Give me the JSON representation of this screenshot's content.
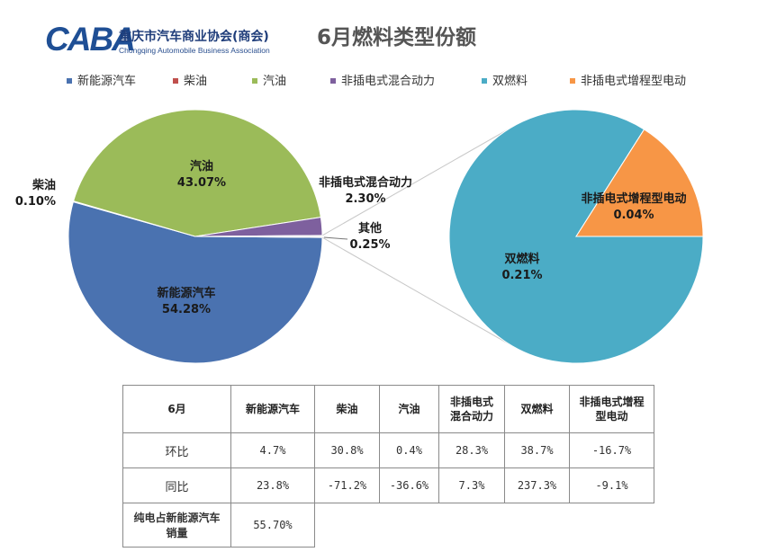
{
  "logo": {
    "mark": "CABA",
    "name_cn": "重庆市汽车商业协会(商会)",
    "name_en": "Chongqing Automobile Business Association"
  },
  "chart_data": {
    "type": "pie",
    "title": "6月燃料类型份额",
    "legend_position": "top",
    "legend": [
      {
        "label": "新能源汽车",
        "color": "#4a72b0"
      },
      {
        "label": "柴油",
        "color": "#c0504d"
      },
      {
        "label": "汽油",
        "color": "#9bbb59"
      },
      {
        "label": "非插电式混合动力",
        "color": "#7e609e"
      },
      {
        "label": "双燃料",
        "color": "#4bacc6"
      },
      {
        "label": "非插电式增程型电动",
        "color": "#f79646"
      }
    ],
    "main_pie": {
      "slices": [
        {
          "label": "新能源汽车",
          "value": 54.28,
          "display": "54.28%",
          "color": "#4a72b0"
        },
        {
          "label": "柴油",
          "value": 0.1,
          "display": "0.10%",
          "color": "#c0504d"
        },
        {
          "label": "汽油",
          "value": 43.07,
          "display": "43.07%",
          "color": "#9bbb59"
        },
        {
          "label": "非插电式混合动力",
          "value": 2.3,
          "display": "2.30%",
          "color": "#7e609e"
        },
        {
          "label": "其他",
          "value": 0.25,
          "display": "0.25%",
          "color": "#f2f2f2"
        }
      ]
    },
    "secondary_pie": {
      "of": "其他",
      "slices": [
        {
          "label": "双燃料",
          "value": 0.21,
          "display": "0.21%",
          "color": "#4bacc6"
        },
        {
          "label": "非插电式增程型电动",
          "value": 0.04,
          "display": "0.04%",
          "color": "#f79646"
        }
      ]
    }
  },
  "table": {
    "headers": [
      "6月",
      "新能源汽车",
      "柴油",
      "汽油",
      "非插电式\n混合动力",
      "双燃料",
      "非插电式增程\n型电动"
    ],
    "rows": [
      [
        "环比",
        "4.7%",
        "30.8%",
        "0.4%",
        "28.3%",
        "38.7%",
        "-16.7%"
      ],
      [
        "同比",
        "23.8%",
        "-71.2%",
        "-36.6%",
        "7.3%",
        "237.3%",
        "-9.1%"
      ]
    ],
    "last_row": {
      "label": "纯电占新能源汽车\n销量",
      "value": "55.70%"
    }
  }
}
